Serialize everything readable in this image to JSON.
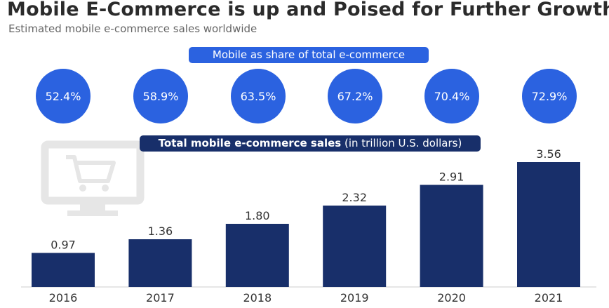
{
  "header": {
    "title": "Mobile E-Commerce is up and Poised for Further Growth",
    "subtitle": "Estimated mobile e-commerce sales worldwide"
  },
  "share_label": "Mobile as share of total e-commerce",
  "sales_label_bold": "Total mobile e-commerce sales",
  "sales_label_unit": "(in trillion U.S. dollars)",
  "colors": {
    "bar": "#182f6a",
    "circle": "#2b62e0",
    "icon": "#e6e6e6"
  },
  "icons": [
    "shopping-cart-monitor-icon"
  ],
  "chart_data": {
    "type": "bar",
    "categories": [
      "2016",
      "2017",
      "2018",
      "2019",
      "2020",
      "2021"
    ],
    "values": [
      0.97,
      1.36,
      1.8,
      2.32,
      2.91,
      3.56
    ],
    "value_labels": [
      "0.97",
      "1.36",
      "1.80",
      "2.32",
      "2.91",
      "3.56"
    ],
    "share_labels": [
      "52.4%",
      "58.9%",
      "63.5%",
      "67.2%",
      "70.4%",
      "72.9%"
    ],
    "shares": [
      52.4,
      58.9,
      63.5,
      67.2,
      70.4,
      72.9
    ],
    "title": "Mobile E-Commerce is up and Poised for Further Growth",
    "subtitle": "Estimated mobile e-commerce sales worldwide",
    "xlabel": "",
    "ylabel": "",
    "ylim": [
      0,
      3.56
    ],
    "grid": false,
    "legend": "none"
  }
}
